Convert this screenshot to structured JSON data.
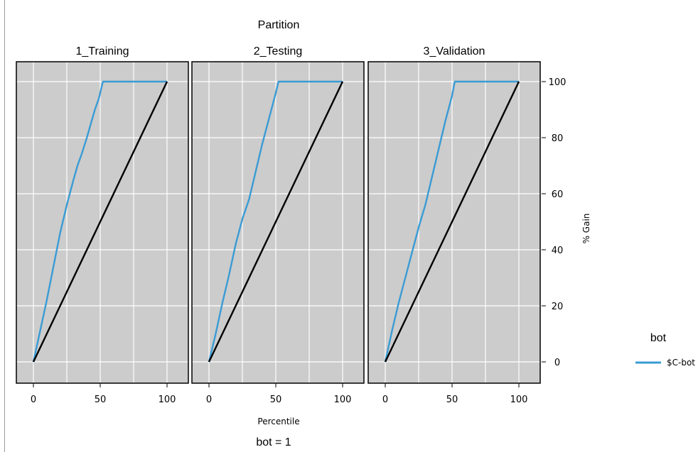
{
  "chart_data": {
    "type": "line",
    "title": "Partition",
    "subtitle": "bot = 1",
    "xlabel": "Percentile",
    "ylabel": "% Gain",
    "xlim": [
      -8,
      108
    ],
    "ylim": [
      -8,
      108
    ],
    "x_ticks": [
      "0",
      "50",
      "100"
    ],
    "y_ticks": [
      "0",
      "20",
      "40",
      "60",
      "80",
      "100"
    ],
    "grid": true,
    "legend": {
      "title": "bot",
      "placement": "right",
      "entries": [
        "$C-bot"
      ]
    },
    "colors": {
      "gain": "#3a9bd5",
      "baseline": "#000000",
      "panel_bg": "#cccccc",
      "grid": "#ffffff"
    },
    "panels": [
      {
        "name": "1_Training",
        "series": [
          {
            "name": "$C-bot",
            "x": [
              0,
              5,
              10,
              15,
              20,
              25,
              30,
              33,
              36,
              40,
              43,
              46,
              49,
              52,
              100
            ],
            "y": [
              0,
              11,
              22,
              34,
              46,
              56,
              65,
              70,
              74,
              80,
              85,
              90,
              94,
              100,
              100
            ]
          },
          {
            "x": [
              0,
              100
            ],
            "y": [
              0,
              100
            ]
          }
        ]
      },
      {
        "name": "2_Testing",
        "series": [
          {
            "name": "$C-bot",
            "x": [
              0,
              5,
              10,
              15,
              20,
              25,
              30,
              35,
              40,
              45,
              50,
              52,
              100
            ],
            "y": [
              0,
              10,
              21,
              31,
              42,
              51,
              58,
              68,
              78,
              87,
              96,
              100,
              100
            ]
          },
          {
            "x": [
              0,
              100
            ],
            "y": [
              0,
              100
            ]
          }
        ]
      },
      {
        "name": "3_Validation",
        "series": [
          {
            "name": "$C-bot",
            "x": [
              0,
              5,
              10,
              15,
              20,
              25,
              30,
              35,
              40,
              45,
              50,
              52,
              100
            ],
            "y": [
              0,
              11,
              21,
              30,
              39,
              48,
              56,
              66,
              76,
              86,
              95,
              100,
              100
            ]
          },
          {
            "x": [
              0,
              100
            ],
            "y": [
              0,
              100
            ]
          }
        ]
      }
    ]
  }
}
